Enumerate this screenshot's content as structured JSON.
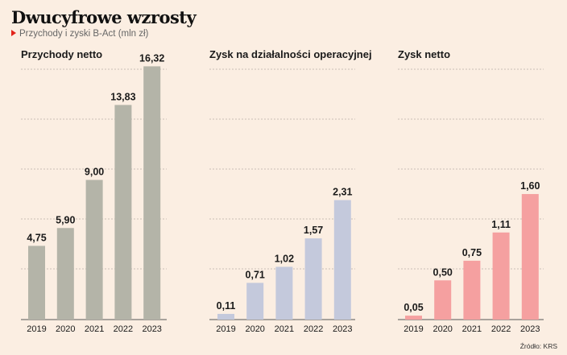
{
  "header": {
    "title": "Dwucyfrowe wzrosty",
    "subtitle": "Przychody i zyski B-Act (mln zł)"
  },
  "footer": {
    "source": "Źródło: KRS"
  },
  "colors": {
    "background": "#fbeee2",
    "revenue_bar": "#b4b4a8",
    "operating_bar": "#c4c9dc",
    "net_bar": "#f5a0a0",
    "gridline": "#b8b0a8",
    "marker": "#e2231a"
  },
  "chart_data": [
    {
      "type": "bar",
      "title": "Przychody netto",
      "categories": [
        "2019",
        "2020",
        "2021",
        "2022",
        "2023"
      ],
      "values": [
        4.75,
        5.9,
        9.0,
        13.83,
        16.32
      ],
      "labels": [
        "4,75",
        "5,90",
        "9,00",
        "13,83",
        "16,32"
      ],
      "ylim": [
        0,
        18
      ],
      "grid": true,
      "color": "#b4b4a8"
    },
    {
      "type": "bar",
      "title": "Zysk na działalności operacyjnej",
      "categories": [
        "2019",
        "2020",
        "2021",
        "2022",
        "2023"
      ],
      "values": [
        0.11,
        0.71,
        1.02,
        1.57,
        2.31
      ],
      "labels": [
        "0,11",
        "0,71",
        "1,02",
        "1,57",
        "2,31"
      ],
      "ylim": [
        0,
        5.4
      ],
      "grid": true,
      "color": "#c4c9dc"
    },
    {
      "type": "bar",
      "title": "Zysk netto",
      "categories": [
        "2019",
        "2020",
        "2021",
        "2022",
        "2023"
      ],
      "values": [
        0.05,
        0.5,
        0.75,
        1.11,
        1.6
      ],
      "labels": [
        "0,05",
        "0,50",
        "0,75",
        "1,11",
        "1,60"
      ],
      "ylim": [
        0,
        3.56
      ],
      "grid": true,
      "color": "#f5a0a0"
    }
  ]
}
